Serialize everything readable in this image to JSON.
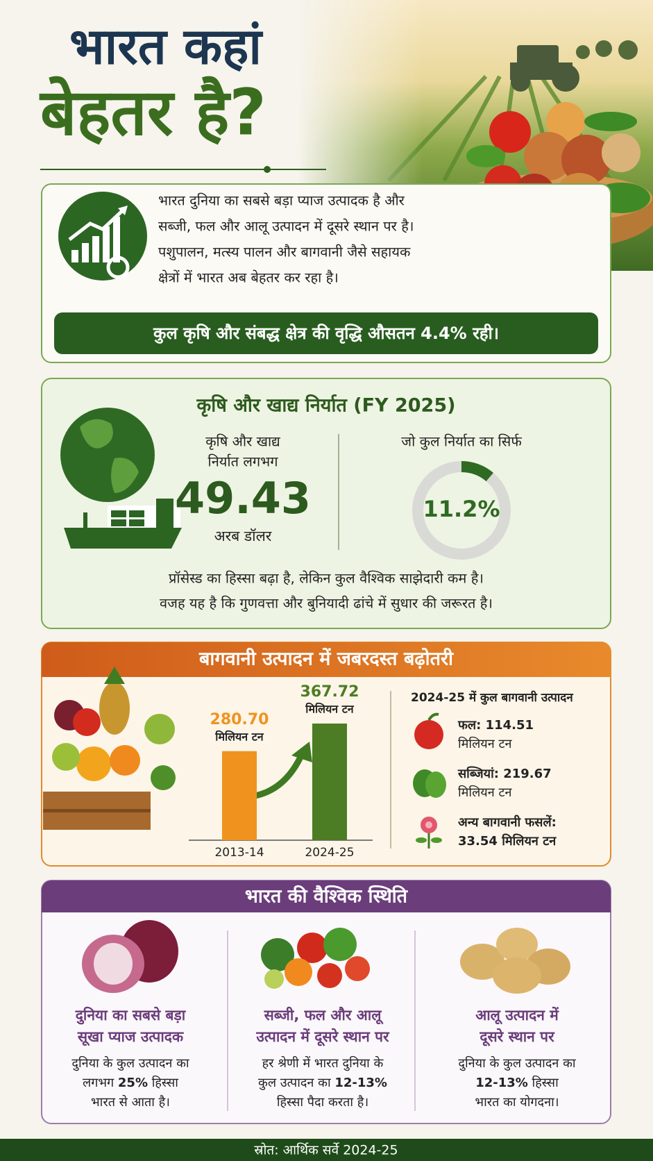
{
  "header": {
    "title_line1": "भारत कहां",
    "title_line2": "बेहतर है?"
  },
  "intro": {
    "lines": [
      "भारत दुनिया का सबसे बड़ा प्याज उत्पादक है और",
      "सब्जी, फल और आलू उत्पादन में दूसरे स्थान पर है।",
      "पशुपालन, मत्स्य पालन और बागवानी जैसे सहायक",
      "क्षेत्रों में भारत अब बेहतर कर रहा है।"
    ],
    "highlight": "कुल कृषि और संबद्ध क्षेत्र की वृद्धि औसतन 4.4% रही।"
  },
  "exports": {
    "title": "कृषि और खाद्य निर्यात (FY 2025)",
    "label_lines": [
      "कृषि और खाद्य",
      "निर्यात लगभग"
    ],
    "value": 49.43,
    "unit": "अरब डॉलर",
    "note_lines": [
      "प्रॉसेस्ड का हिस्सा बढ़ा है, लेकिन कुल वैश्विक साझेदारी कम है।",
      "वजह यह है कि गुणवत्ता और बुनियादी ढांचे में सुधार की जरूरत है।"
    ]
  },
  "chart_data": [
    {
      "type": "bar",
      "title": "बागवानी उत्पादन में जबरदस्त बढ़ोतरी",
      "categories": [
        "2013-14",
        "2024-25"
      ],
      "values": [
        280.7,
        367.72
      ],
      "value_labels": [
        "280.70",
        "367.72"
      ],
      "unit": "मिलियन टन",
      "colors": [
        "#f0931e",
        "#4c7d24"
      ]
    },
    {
      "type": "donut",
      "title": "जो कुल निर्यात का सिर्फ",
      "values": [
        11.2
      ],
      "value_labels": [
        "11.2%"
      ],
      "color": "#2f6a22"
    }
  ],
  "horticulture": {
    "breakdown_title": "2024-25 में कुल बागवानी उत्पादन",
    "items": [
      {
        "lines": [
          "फल: 114.51",
          "मिलियन टन"
        ]
      },
      {
        "lines": [
          "सब्जियां: 219.67",
          "मिलियन टन"
        ]
      },
      {
        "lines": [
          "अन्य बागवानी फसलें:",
          "33.54 मिलियन टन"
        ]
      }
    ]
  },
  "global": {
    "title": "भारत की वैश्विक स्थिति",
    "cards": [
      {
        "heading": [
          "दुनिया का सबसे बड़ा",
          "सूखा प्याज उत्पादक"
        ],
        "body": [
          [
            {
              "text": "दुनिया के कुल उत्पादन का"
            }
          ],
          [
            {
              "text": "लगभग "
            },
            {
              "text": "25%",
              "bold": true
            },
            {
              "text": " हिस्सा"
            }
          ],
          [
            {
              "text": "भारत से आता है।"
            }
          ]
        ]
      },
      {
        "heading": [
          "सब्जी, फल और आलू",
          "उत्पादन में दूसरे स्थान पर"
        ],
        "body": [
          [
            {
              "text": "हर श्रेणी में भारत दुनिया के"
            }
          ],
          [
            {
              "text": "कुल उत्पादन का "
            },
            {
              "text": "12-13%",
              "bold": true
            }
          ],
          [
            {
              "text": "हिस्सा पैदा करता है।"
            }
          ]
        ]
      },
      {
        "heading": [
          "आलू उत्पादन में",
          "दूसरे स्थान पर"
        ],
        "body": [
          [
            {
              "text": "दुनिया के कुल उत्पादन का"
            }
          ],
          [
            {
              "text": "12-13%",
              "bold": true
            },
            {
              "text": " हिस्सा"
            }
          ],
          [
            {
              "text": "भारत का योगदना।"
            }
          ]
        ]
      }
    ]
  },
  "footer": {
    "source": "स्रोत: आर्थिक सर्वे 2024-25"
  }
}
